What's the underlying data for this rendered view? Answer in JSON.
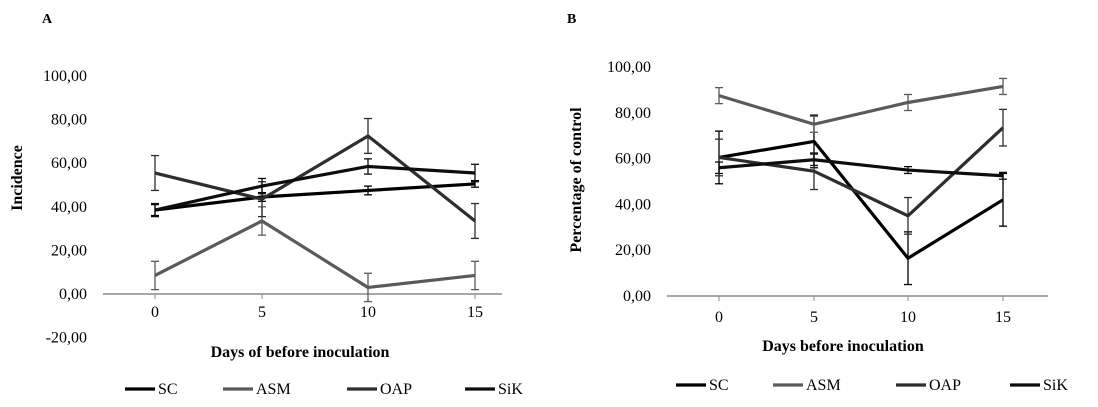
{
  "colors": {
    "SC": "#000000",
    "ASM": "#5a5a5a",
    "OAP": "#2e2e2e",
    "SiK": "#0d0d0d"
  },
  "chart_data": [
    {
      "type": "line",
      "panel": "A",
      "xlabel": "Days of before inoculation",
      "ylabel": "Incidence",
      "categories": [
        "0",
        "5",
        "10",
        "15"
      ],
      "x": [
        0,
        5,
        10,
        15
      ],
      "ylim": [
        -20,
        100
      ],
      "yticks": [
        "-20,00",
        "0,00",
        "20,00",
        "40,00",
        "60,00",
        "80,00",
        "100,00"
      ],
      "ytick_values": [
        -20,
        0,
        20,
        40,
        60,
        80,
        100
      ],
      "grid": false,
      "legend_position": "bottom",
      "series": [
        {
          "name": "SC",
          "values": [
            38.5,
            44.5,
            47.5,
            50.5
          ],
          "errors": [
            2.5,
            2.0,
            2.0,
            1.5
          ]
        },
        {
          "name": "ASM",
          "values": [
            8.5,
            33.5,
            3.0,
            8.5
          ],
          "errors": [
            6.5,
            6.5,
            6.5,
            6.5
          ]
        },
        {
          "name": "OAP",
          "values": [
            55.5,
            43.5,
            72.5,
            33.5
          ],
          "errors": [
            8.0,
            8.0,
            8.0,
            8.0
          ]
        },
        {
          "name": "SiK",
          "values": [
            38.5,
            49.5,
            58.5,
            55.5
          ],
          "errors": [
            3.0,
            3.5,
            3.5,
            4.0
          ]
        }
      ]
    },
    {
      "type": "line",
      "panel": "B",
      "xlabel": "Days before inoculation",
      "ylabel": "Percentage of control",
      "categories": [
        "0",
        "5",
        "10",
        "15"
      ],
      "x": [
        0,
        5,
        10,
        15
      ],
      "ylim": [
        0,
        100
      ],
      "yticks": [
        "0,00",
        "20,00",
        "40,00",
        "60,00",
        "80,00",
        "100,00"
      ],
      "ytick_values": [
        0,
        20,
        40,
        60,
        80,
        100
      ],
      "grid": false,
      "legend_position": "bottom",
      "series": [
        {
          "name": "SC",
          "values": [
            60.5,
            67.5,
            16.5,
            42.0
          ],
          "errors": [
            11.5,
            11.5,
            11.5,
            11.5
          ]
        },
        {
          "name": "ASM",
          "values": [
            87.5,
            75.0,
            84.5,
            91.5
          ],
          "errors": [
            3.5,
            3.5,
            3.5,
            3.5
          ]
        },
        {
          "name": "OAP",
          "values": [
            60.5,
            54.5,
            35.0,
            73.5
          ],
          "errors": [
            8.0,
            8.0,
            8.0,
            8.0
          ]
        },
        {
          "name": "SiK",
          "values": [
            56.0,
            59.5,
            55.0,
            52.5
          ],
          "errors": [
            2.5,
            2.5,
            1.5,
            1.5
          ]
        }
      ]
    }
  ]
}
